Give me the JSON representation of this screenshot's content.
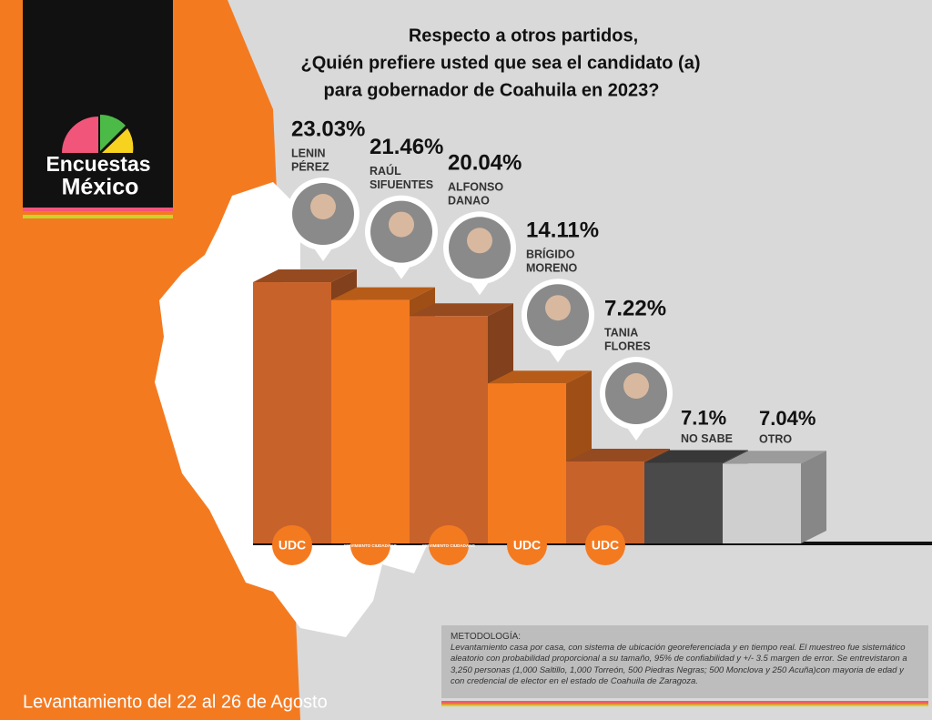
{
  "header": {
    "logo_line1": "Encuestas",
    "logo_line2": "México",
    "title": [
      "Respecto a otros partidos,",
      "¿Quién prefiere usted que sea el candidato (a)",
      "para gobernador de Coahuila en 2023?"
    ]
  },
  "chart_data": {
    "type": "bar",
    "categories": [
      [
        "LENIN",
        "PÉREZ"
      ],
      [
        "RAÚL",
        "SIFUENTES"
      ],
      [
        "ALFONSO",
        "DANAO"
      ],
      [
        "BRÍGIDO",
        "MORENO"
      ],
      [
        "TANIA",
        "FLORES"
      ],
      [
        "NO SABE"
      ],
      [
        "OTRO"
      ]
    ],
    "values": [
      23.03,
      21.46,
      20.04,
      14.11,
      7.22,
      7.1,
      7.04
    ],
    "value_labels": [
      "23.03%",
      "21.46%",
      "20.04%",
      "14.11%",
      "7.22%",
      "7.1%",
      "7.04%"
    ],
    "colors": [
      "#c8622b",
      "#f47a20",
      "#c8622b",
      "#f47a20",
      "#c8622b",
      "#4a4a4a",
      "#cfcfcf"
    ],
    "parties": [
      "UDC",
      "MOVIMIENTO CIUDADANO",
      "MOVIMIENTO CIUDADANO",
      "UDC",
      "UDC"
    ]
  },
  "methodology": {
    "heading": "METODOLOGÍA:",
    "text": "Levantamiento casa por casa, con sistema de ubicación georeferenciada y en tiempo real. El muestreo fue sistemático aleatorio con probabilidad proporcional a su tamaño, 95% de confiabilidad y +/- 3.5 margen de error. Se entrevistaron a 3,250 personas  (1,000 Saltillo, 1,000 Torreón, 500 Piedras Negras; 500 Monclova y 250 Acuña)con mayoria de edad y con credencial de elector en el estado de Coahuila de Zaragoza."
  },
  "footer": "Levantamiento del 22 al 26 de Agosto"
}
